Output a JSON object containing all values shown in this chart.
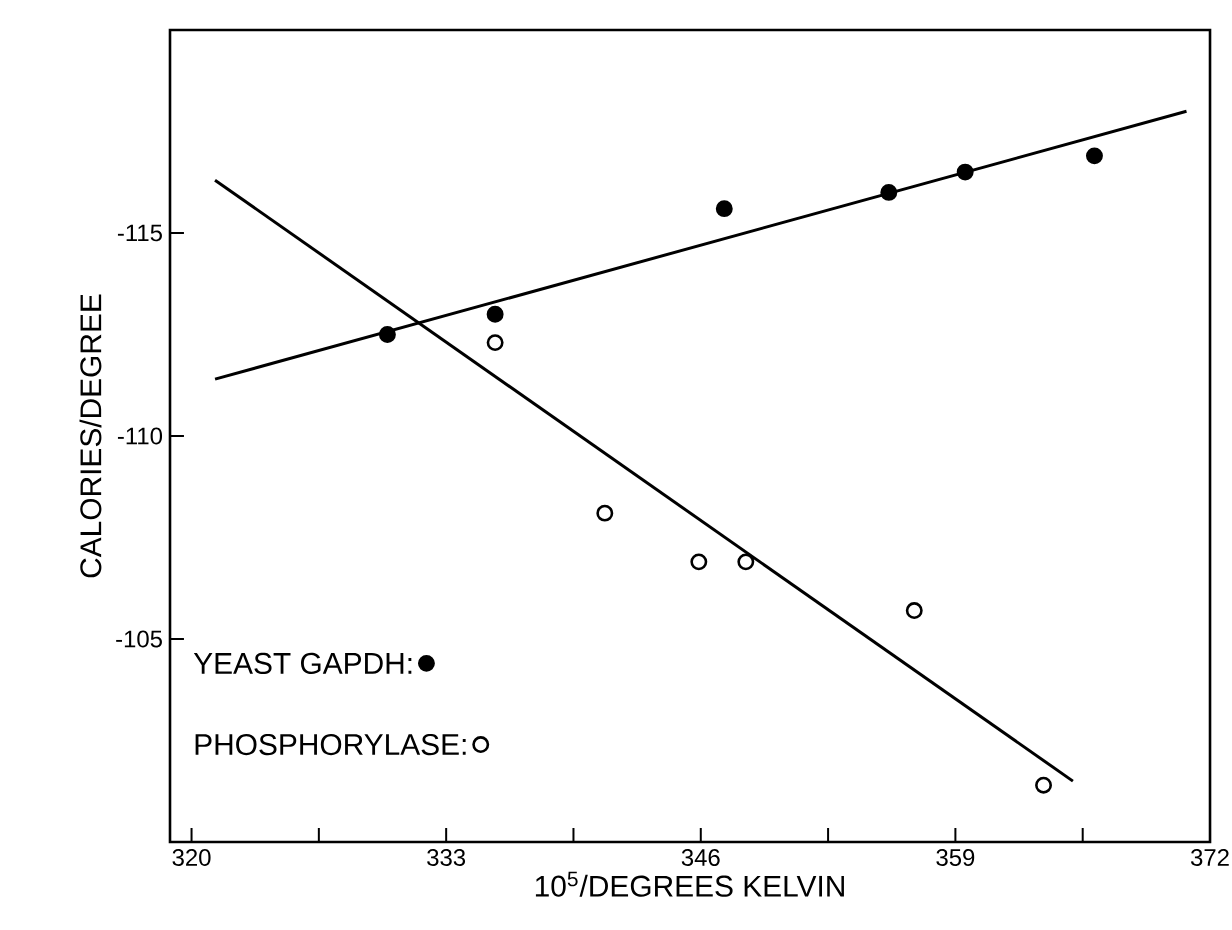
{
  "chart_data": {
    "type": "scatter",
    "xlabel": "10$^{5}$/DEGREES KELVIN",
    "ylabel": "CALORIES/DEGREE",
    "xlim": [
      318.9,
      372
    ],
    "ylim": [
      -100,
      -120
    ],
    "xticks": [
      320,
      {
        "value": 326.5,
        "label": null
      },
      333,
      {
        "value": 339.5,
        "label": null
      },
      346,
      {
        "value": 352.5,
        "label": null
      },
      359,
      {
        "value": 365.5,
        "label": null
      },
      372
    ],
    "yticks": [
      -115,
      -110,
      -105
    ],
    "grid": false,
    "legend": "bottom left",
    "marker": "circle",
    "series": [
      {
        "name": "YEAST GAPDH:",
        "color": "#000000",
        "x": [
          330.0,
          335.5,
          347.2,
          355.6,
          359.5,
          366.1
        ],
        "values": [
          -112.5,
          -113.0,
          -115.6,
          -116.0,
          -116.5,
          -116.9
        ]
      },
      {
        "name": "PHOSPHORYLASE:",
        "color": "#000000",
        "x": [
          335.5,
          341.1,
          345.9,
          348.3,
          356.9,
          363.5
        ],
        "values": [
          -112.3,
          -108.1,
          -106.9,
          -106.9,
          -105.7,
          -101.4
        ]
      },
      {
        "type": "line",
        "marker": "none",
        "color": "#000000",
        "x": [
          321.2,
          370.8
        ],
        "values": [
          -111.4,
          -118.0
        ]
      },
      {
        "type": "line",
        "marker": "none",
        "color": "#000000",
        "x": [
          321.2,
          365.0
        ],
        "values": [
          -116.3,
          -101.5
        ]
      }
    ]
  }
}
